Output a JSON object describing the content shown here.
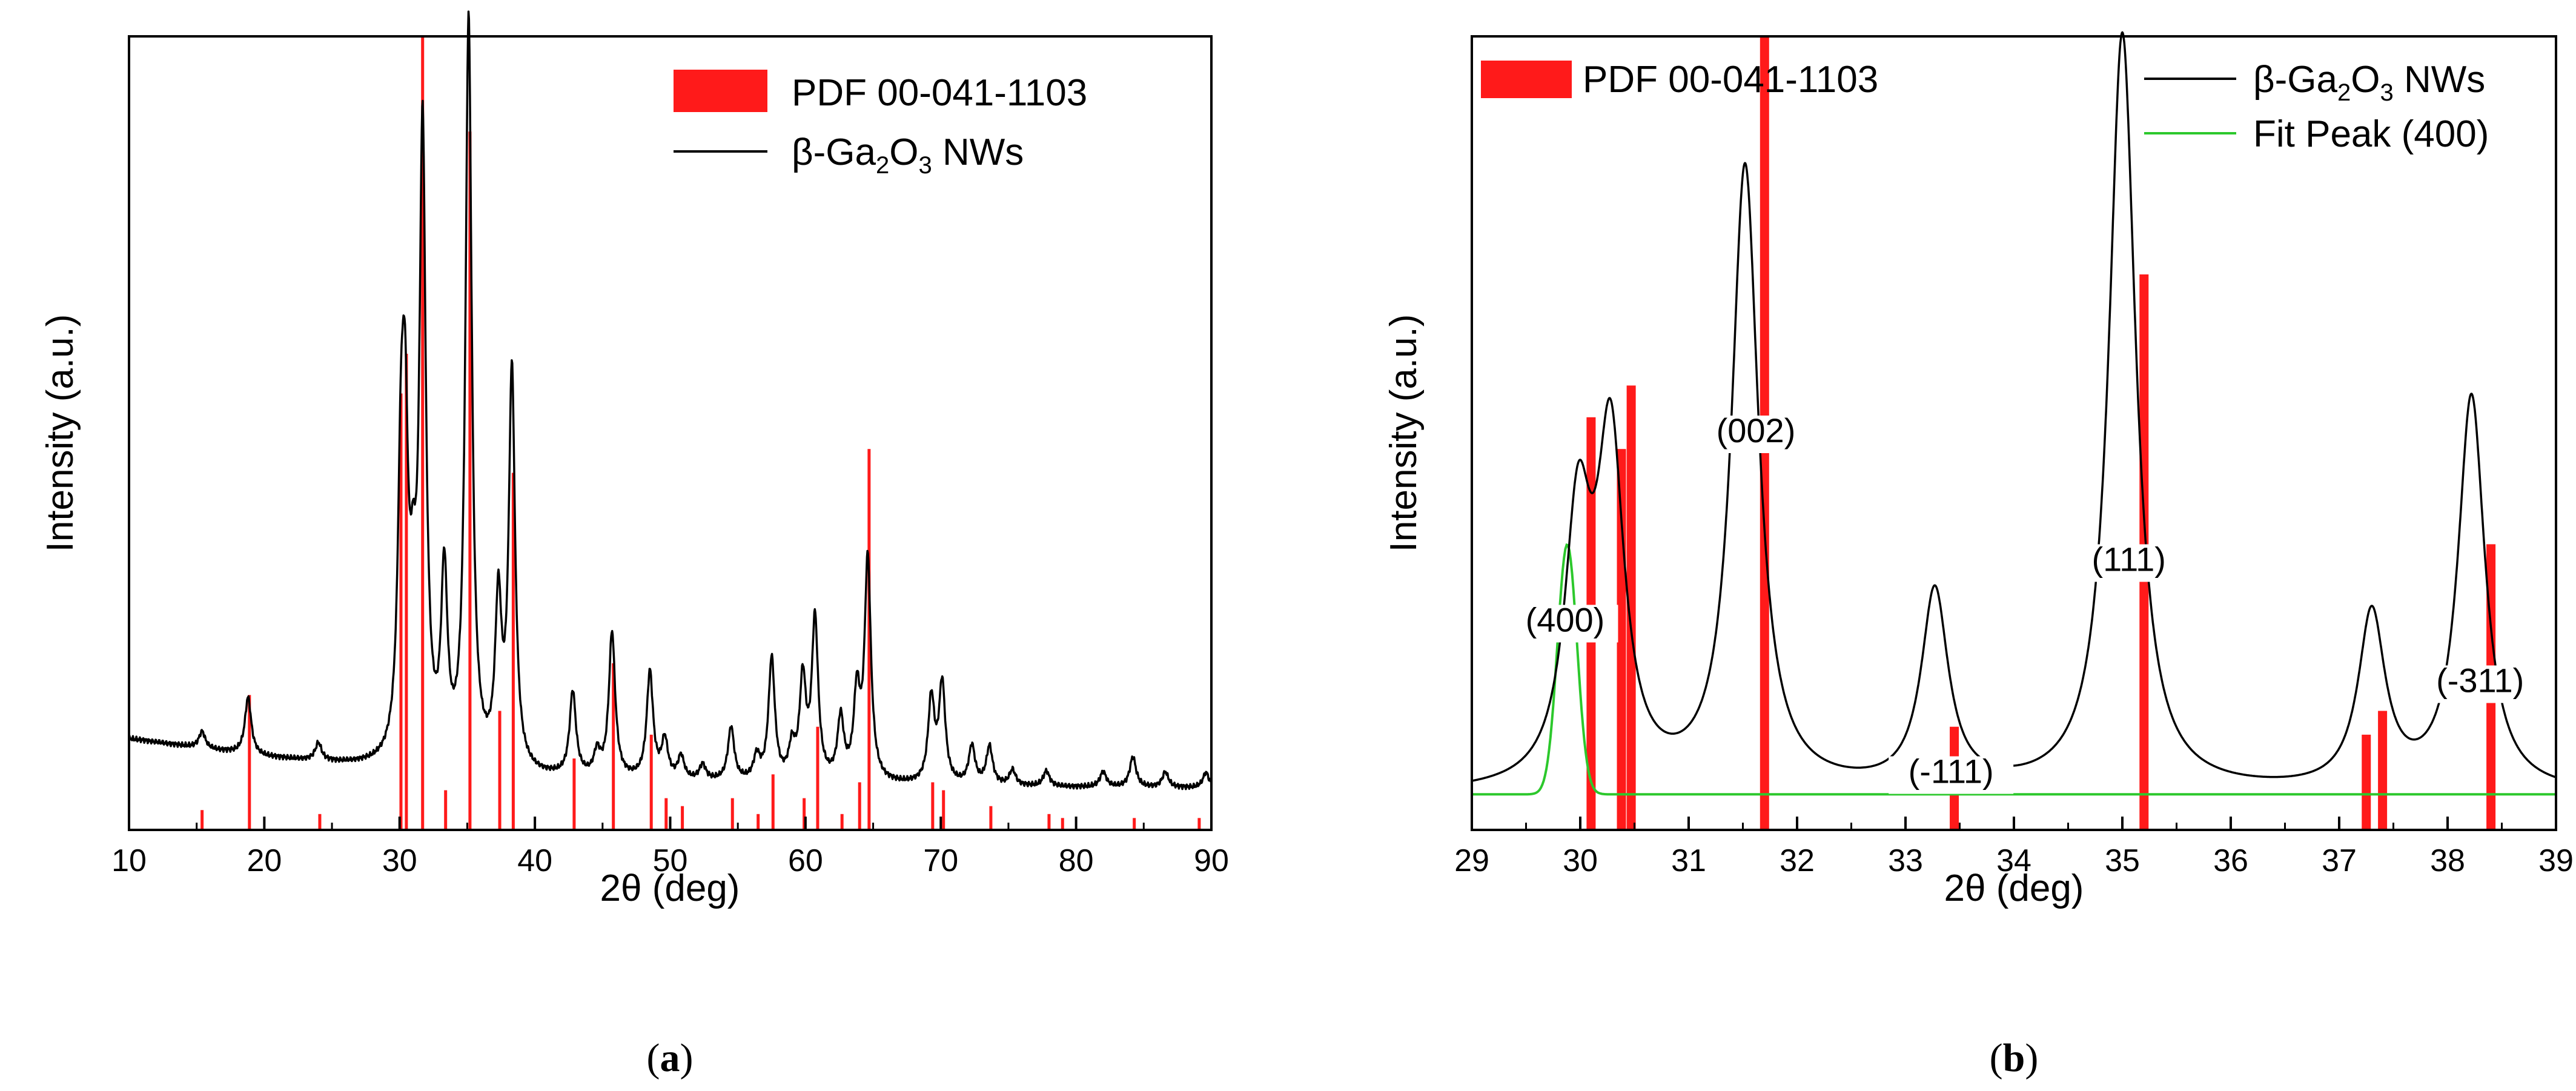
{
  "colors": {
    "reference": "#ff1a1a",
    "measured": "#000000",
    "fit": "#2cc82c",
    "axis": "#000000"
  },
  "chart_data": [
    {
      "id": "a",
      "panel_label_prefix": "(",
      "panel_letter": "a",
      "panel_label_suffix": ")",
      "type": "line",
      "xlabel": "2θ (deg)",
      "ylabel": "Intensity (a.u.)",
      "xlim": [
        10,
        90
      ],
      "ylim": [
        0,
        100
      ],
      "xticks": [
        "10",
        "20",
        "30",
        "40",
        "50",
        "60",
        "70",
        "80",
        "90"
      ],
      "legend_position": "top-right",
      "legend": [
        {
          "kind": "bar",
          "label": "PDF 00-041-1103"
        },
        {
          "kind": "line",
          "label_prefix": "β-Ga",
          "sub1": "2",
          "label_mid": "O",
          "sub2": "3",
          "label_suffix": " NWs"
        }
      ],
      "series": [
        {
          "name": "β-Ga2O3 NWs",
          "kind": "line",
          "baseline": [
            [
              10,
              8.8
            ],
            [
              20,
              6.3
            ],
            [
              30,
              4.6
            ],
            [
              40,
              3.6
            ],
            [
              50,
              3.1
            ],
            [
              60,
              2.8
            ],
            [
              70,
              2.6
            ],
            [
              80,
              2.4
            ],
            [
              90,
              2.3
            ]
          ],
          "peaks": [
            [
              15.4,
              2.2
            ],
            [
              18.8,
              7.5
            ],
            [
              24.0,
              2.3
            ],
            [
              30.1,
              32
            ],
            [
              30.4,
              37
            ],
            [
              31.0,
              14
            ],
            [
              31.7,
              82
            ],
            [
              33.3,
              24
            ],
            [
              35.1,
              98
            ],
            [
              37.3,
              21
            ],
            [
              38.3,
              52
            ],
            [
              42.8,
              11
            ],
            [
              44.6,
              3
            ],
            [
              45.7,
              19
            ],
            [
              48.5,
              14
            ],
            [
              49.6,
              5
            ],
            [
              50.8,
              3
            ],
            [
              52.4,
              2
            ],
            [
              54.5,
              7
            ],
            [
              56.4,
              3
            ],
            [
              57.5,
              16
            ],
            [
              59.0,
              4
            ],
            [
              59.8,
              13
            ],
            [
              60.7,
              21
            ],
            [
              62.6,
              8
            ],
            [
              63.8,
              11
            ],
            [
              64.6,
              29
            ],
            [
              69.3,
              11
            ],
            [
              70.1,
              13
            ],
            [
              72.3,
              5
            ],
            [
              73.6,
              5
            ],
            [
              75.3,
              2
            ],
            [
              77.8,
              2
            ],
            [
              82.0,
              2
            ],
            [
              84.2,
              4
            ],
            [
              86.6,
              2
            ],
            [
              89.6,
              2
            ]
          ]
        },
        {
          "name": "PDF 00-041-1103",
          "kind": "stick",
          "sticks": [
            [
              15.4,
              2.5
            ],
            [
              18.9,
              17
            ],
            [
              24.1,
              2
            ],
            [
              30.1,
              55
            ],
            [
              30.5,
              60
            ],
            [
              31.7,
              100
            ],
            [
              33.4,
              5
            ],
            [
              35.2,
              88
            ],
            [
              37.4,
              15
            ],
            [
              38.4,
              45
            ],
            [
              42.9,
              9
            ],
            [
              45.8,
              21
            ],
            [
              48.6,
              12
            ],
            [
              49.7,
              4
            ],
            [
              50.9,
              3
            ],
            [
              54.6,
              4
            ],
            [
              56.5,
              2
            ],
            [
              57.6,
              7
            ],
            [
              59.9,
              4
            ],
            [
              60.9,
              13
            ],
            [
              62.7,
              2
            ],
            [
              64.0,
              6
            ],
            [
              64.7,
              48
            ],
            [
              69.4,
              6
            ],
            [
              70.2,
              5
            ],
            [
              73.7,
              3
            ],
            [
              78.0,
              2
            ],
            [
              79.0,
              1.5
            ],
            [
              84.3,
              1.5
            ],
            [
              89.1,
              1.5
            ]
          ]
        }
      ]
    },
    {
      "id": "b",
      "panel_label_prefix": "(",
      "panel_letter": "b",
      "panel_label_suffix": ")",
      "type": "line",
      "xlabel": "2θ (deg)",
      "ylabel": "Intensity (a.u.)",
      "xlim": [
        29,
        39
      ],
      "ylim": [
        0,
        100
      ],
      "xticks": [
        "29",
        "30",
        "31",
        "32",
        "33",
        "34",
        "35",
        "36",
        "37",
        "38",
        "39"
      ],
      "legend_position": "top",
      "legend": [
        {
          "kind": "bar",
          "label": "PDF 00-041-1103"
        },
        {
          "kind": "line",
          "label_prefix": "β-Ga",
          "sub1": "2",
          "label_mid": "O",
          "sub2": "3",
          "label_suffix": " NWs"
        },
        {
          "kind": "fitline",
          "label": "Fit Peak (400)"
        }
      ],
      "series": [
        {
          "name": "β-Ga2O3 NWs",
          "kind": "line",
          "baseline": [
            [
              29,
              1.5
            ],
            [
              39,
              1.5
            ]
          ],
          "width": 0.15,
          "peaks": [
            [
              29.98,
              34
            ],
            [
              30.28,
              44
            ],
            [
              31.52,
              82
            ],
            [
              33.27,
              26
            ],
            [
              35.0,
              100
            ],
            [
              37.3,
              23
            ],
            [
              38.22,
              52
            ]
          ]
        },
        {
          "name": "Fit Peak (400)",
          "kind": "fit",
          "center": 29.88,
          "height": 33,
          "sigma": 0.09,
          "baseline": 1.5
        },
        {
          "name": "PDF 00-041-1103",
          "kind": "stick",
          "sticks": [
            [
              30.1,
              52
            ],
            [
              30.38,
              48
            ],
            [
              30.47,
              56
            ],
            [
              31.7,
              100
            ],
            [
              33.45,
              13
            ],
            [
              35.2,
              70
            ],
            [
              37.25,
              12
            ],
            [
              37.4,
              15
            ],
            [
              38.4,
              36
            ]
          ]
        }
      ],
      "annotations": [
        {
          "label": "(400)",
          "x": 29.86,
          "y": 23
        },
        {
          "label": "(002)",
          "x": 31.62,
          "y": 48
        },
        {
          "label": "(-111)",
          "x": 33.42,
          "y": 3
        },
        {
          "label": "(111)",
          "x": 35.06,
          "y": 31
        },
        {
          "label": "(-311)",
          "x": 38.3,
          "y": 15
        }
      ]
    }
  ]
}
